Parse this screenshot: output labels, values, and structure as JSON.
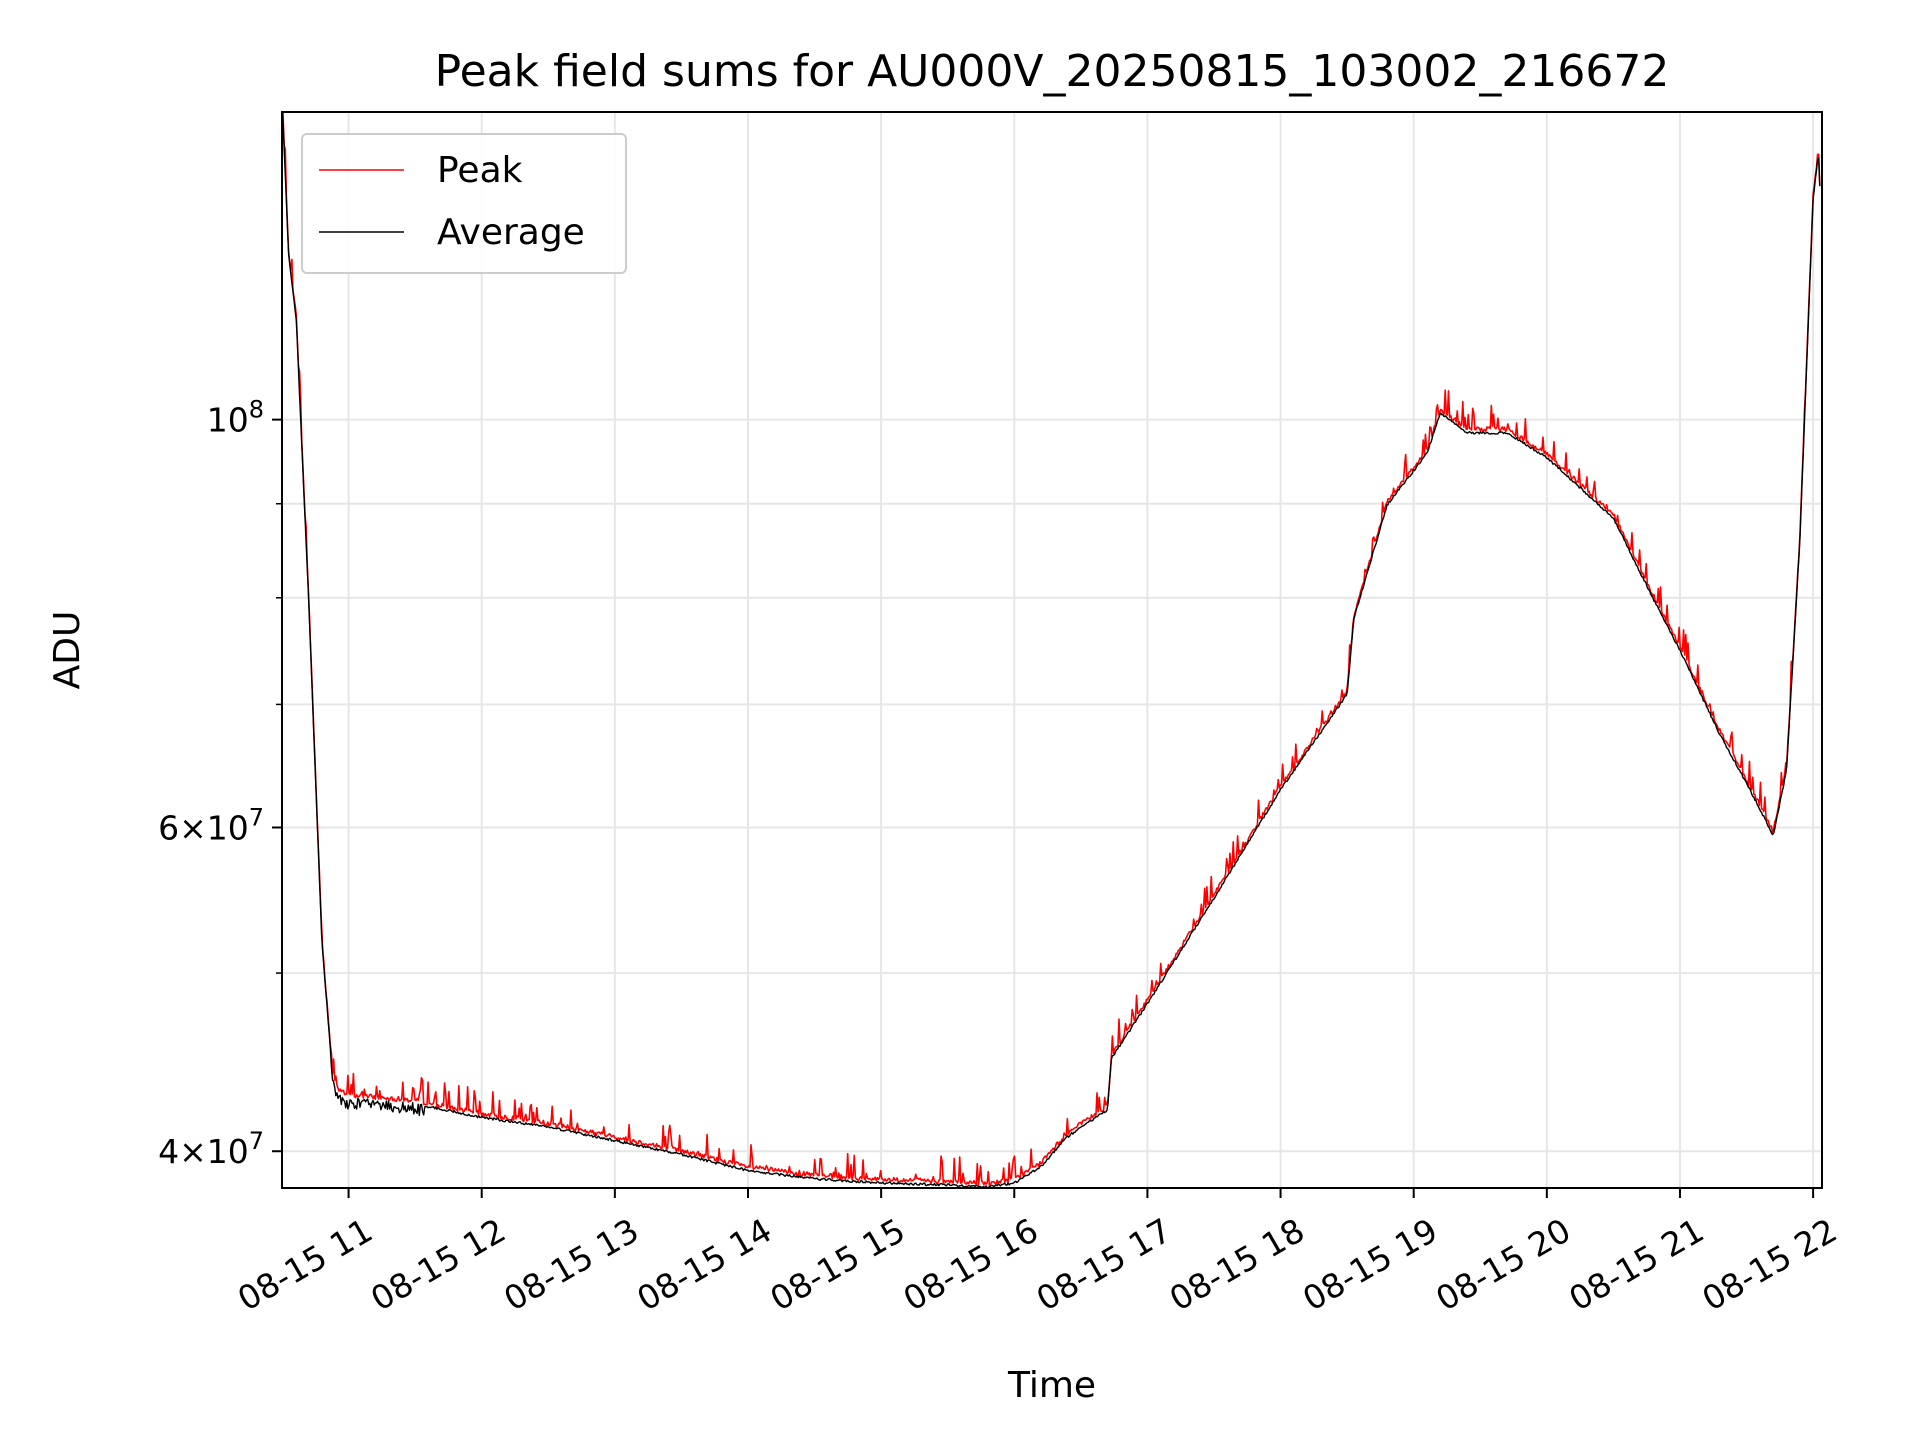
{
  "chart_data": {
    "type": "line",
    "title": "Peak field sums for AU000V_20250815_103002_216672",
    "xlabel": "Time",
    "ylabel": "ADU",
    "yscale": "log",
    "ylim": [
      38200000,
      147000000
    ],
    "xlim": [
      "08-15 10:30",
      "08-15 22:04"
    ],
    "x_ticks": [
      "08-15 11",
      "08-15 12",
      "08-15 13",
      "08-15 14",
      "08-15 15",
      "08-15 16",
      "08-15 17",
      "08-15 18",
      "08-15 19",
      "08-15 20",
      "08-15 21",
      "08-15 22"
    ],
    "x_tick_hours": [
      11,
      12,
      13,
      14,
      15,
      16,
      17,
      18,
      19,
      20,
      21,
      22
    ],
    "y_ticks": [
      {
        "value": 40000000,
        "mantissa": "4",
        "exp": "7"
      },
      {
        "value": 60000000,
        "mantissa": "6",
        "exp": "7"
      },
      {
        "value": 100000000,
        "mantissa": "",
        "exp": "8"
      }
    ],
    "y_minor_ticks": [
      50000000,
      70000000,
      80000000,
      90000000
    ],
    "grid": true,
    "legend_position": "top-left",
    "series": [
      {
        "name": "Peak",
        "color": "#ff0000",
        "spikes": true,
        "hours": [
          10.5,
          10.55,
          10.61,
          10.62,
          10.7,
          10.8,
          10.88,
          10.93,
          11.0,
          11.5,
          12.0,
          12.5,
          13.0,
          13.5,
          14.0,
          14.5,
          15.0,
          15.5,
          15.8,
          16.0,
          16.2,
          16.4,
          16.7,
          16.73,
          17.0,
          17.5,
          18.0,
          18.5,
          18.55,
          18.8,
          19.1,
          19.2,
          19.4,
          19.7,
          20.0,
          20.5,
          20.8,
          21.0,
          21.3,
          21.45,
          21.6,
          21.7,
          21.8,
          21.9,
          22.0,
          22.04,
          22.05
        ],
        "values": [
          150000000,
          123000000,
          113000000,
          108000000,
          80000000,
          52000000,
          44000000,
          43000000,
          42800000,
          42500000,
          41800000,
          41300000,
          40600000,
          39900000,
          39100000,
          38700000,
          38500000,
          38400000,
          38300000,
          38500000,
          39300000,
          40800000,
          42200000,
          45000000,
          48200000,
          55000000,
          63000000,
          71000000,
          78000000,
          90000000,
          96000000,
          101000000,
          98500000,
          98500000,
          95500000,
          88500000,
          80000000,
          75000000,
          67500000,
          64500000,
          61500000,
          59500000,
          64500000,
          86000000,
          132000000,
          140000000,
          134000000
        ]
      },
      {
        "name": "Average",
        "color": "#000000",
        "spikes": false,
        "hours": [
          10.5,
          10.55,
          10.61,
          10.62,
          10.7,
          10.8,
          10.88,
          10.93,
          11.0,
          11.5,
          12.0,
          12.5,
          13.0,
          13.5,
          14.0,
          14.5,
          15.0,
          15.5,
          15.8,
          16.0,
          16.2,
          16.4,
          16.7,
          16.73,
          17.0,
          17.5,
          18.0,
          18.5,
          18.55,
          18.8,
          19.1,
          19.2,
          19.4,
          19.7,
          20.0,
          20.5,
          20.8,
          21.0,
          21.3,
          21.45,
          21.6,
          21.7,
          21.8,
          21.9,
          22.0,
          22.04,
          22.05
        ],
        "values": [
          150000000,
          123000000,
          113000000,
          108000000,
          80000000,
          52000000,
          44000000,
          43000000,
          42800000,
          42500000,
          41800000,
          41300000,
          40600000,
          39900000,
          39100000,
          38700000,
          38500000,
          38400000,
          38300000,
          38500000,
          39300000,
          40800000,
          42200000,
          45000000,
          48200000,
          55000000,
          63000000,
          71000000,
          78000000,
          90000000,
          96000000,
          101000000,
          98500000,
          98500000,
          95500000,
          88500000,
          80000000,
          75000000,
          67500000,
          64500000,
          61500000,
          59500000,
          64500000,
          86000000,
          132000000,
          140000000,
          134000000
        ]
      }
    ]
  }
}
